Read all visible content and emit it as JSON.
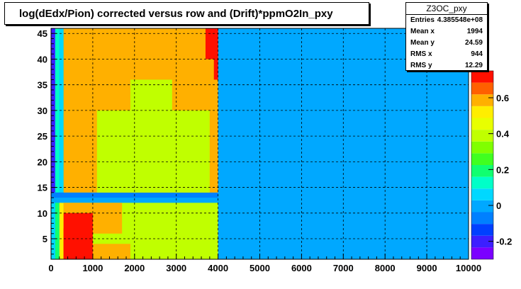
{
  "title": "log(dEdx/Pion) corrected versus row and (Drift)*ppmO2In_pxy",
  "stats": {
    "name": "Z3OC_pxy",
    "rows": [
      {
        "label": "Entries",
        "value": "4.385548e+08"
      },
      {
        "label": "Mean x",
        "value": "1994"
      },
      {
        "label": "Mean y",
        "value": "24.59"
      },
      {
        "label": "RMS x",
        "value": "944"
      },
      {
        "label": "RMS y",
        "value": "12.29"
      }
    ]
  },
  "chart_data": {
    "type": "heatmap",
    "title": "log(dEdx/Pion) corrected versus row and (Drift)*ppmO2In_pxy",
    "xlabel": "",
    "ylabel": "",
    "xlim": [
      0,
      10000
    ],
    "ylim": [
      1,
      46
    ],
    "x_ticks": [
      0,
      1000,
      2000,
      3000,
      4000,
      5000,
      6000,
      7000,
      8000,
      9000,
      10000
    ],
    "y_ticks": [
      5,
      10,
      15,
      20,
      25,
      30,
      35,
      40,
      45
    ],
    "z_ticks": [
      -0.2,
      0,
      0.2,
      0.4,
      0.6
    ],
    "zlim": [
      -0.3,
      0.75
    ],
    "grid": true,
    "palette": [
      "#7b00ff",
      "#3c1fff",
      "#0040ff",
      "#0080ff",
      "#00a8ff",
      "#00d8ff",
      "#00ffc8",
      "#10ff70",
      "#40ff20",
      "#80ff00",
      "#c0ff00",
      "#e8ff00",
      "#ffee00",
      "#ffb000",
      "#ff6000",
      "#ff1000"
    ],
    "background_value": 0.0,
    "filled_x_range": [
      0,
      4000
    ],
    "regions": [
      {
        "x": [
          0,
          100
        ],
        "y": [
          14,
          46
        ],
        "value": -0.2
      },
      {
        "x": [
          0,
          100
        ],
        "y": [
          1,
          12
        ],
        "value": 0.05
      },
      {
        "x": [
          100,
          200
        ],
        "y": [
          14,
          46
        ],
        "value": 0.1
      },
      {
        "x": [
          100,
          200
        ],
        "y": [
          1,
          12
        ],
        "value": 0.2
      },
      {
        "x": [
          200,
          300
        ],
        "y": [
          14,
          46
        ],
        "value": 0.05
      },
      {
        "x": [
          200,
          300
        ],
        "y": [
          1,
          12
        ],
        "value": 0.55
      },
      {
        "x": [
          0,
          4000
        ],
        "y": [
          13,
          14
        ],
        "value": -0.05
      },
      {
        "x": [
          300,
          4000
        ],
        "y": [
          14,
          46
        ],
        "value": 0.58
      },
      {
        "x": [
          1100,
          3800
        ],
        "y": [
          14,
          30
        ],
        "value": 0.4
      },
      {
        "x": [
          1900,
          2900
        ],
        "y": [
          30,
          36
        ],
        "value": 0.4
      },
      {
        "x": [
          3700,
          4000
        ],
        "y": [
          40,
          46
        ],
        "value": 0.7
      },
      {
        "x": [
          3900,
          4000
        ],
        "y": [
          36,
          43
        ],
        "value": 0.75
      },
      {
        "x": [
          300,
          4000
        ],
        "y": [
          1,
          12
        ],
        "value": 0.4
      },
      {
        "x": [
          300,
          1700
        ],
        "y": [
          6,
          12
        ],
        "value": 0.58
      },
      {
        "x": [
          300,
          1000
        ],
        "y": [
          1,
          10
        ],
        "value": 0.72
      },
      {
        "x": [
          300,
          800
        ],
        "y": [
          1,
          7
        ],
        "value": 0.75
      },
      {
        "x": [
          1000,
          1900
        ],
        "y": [
          1,
          4
        ],
        "value": 0.6
      }
    ]
  }
}
